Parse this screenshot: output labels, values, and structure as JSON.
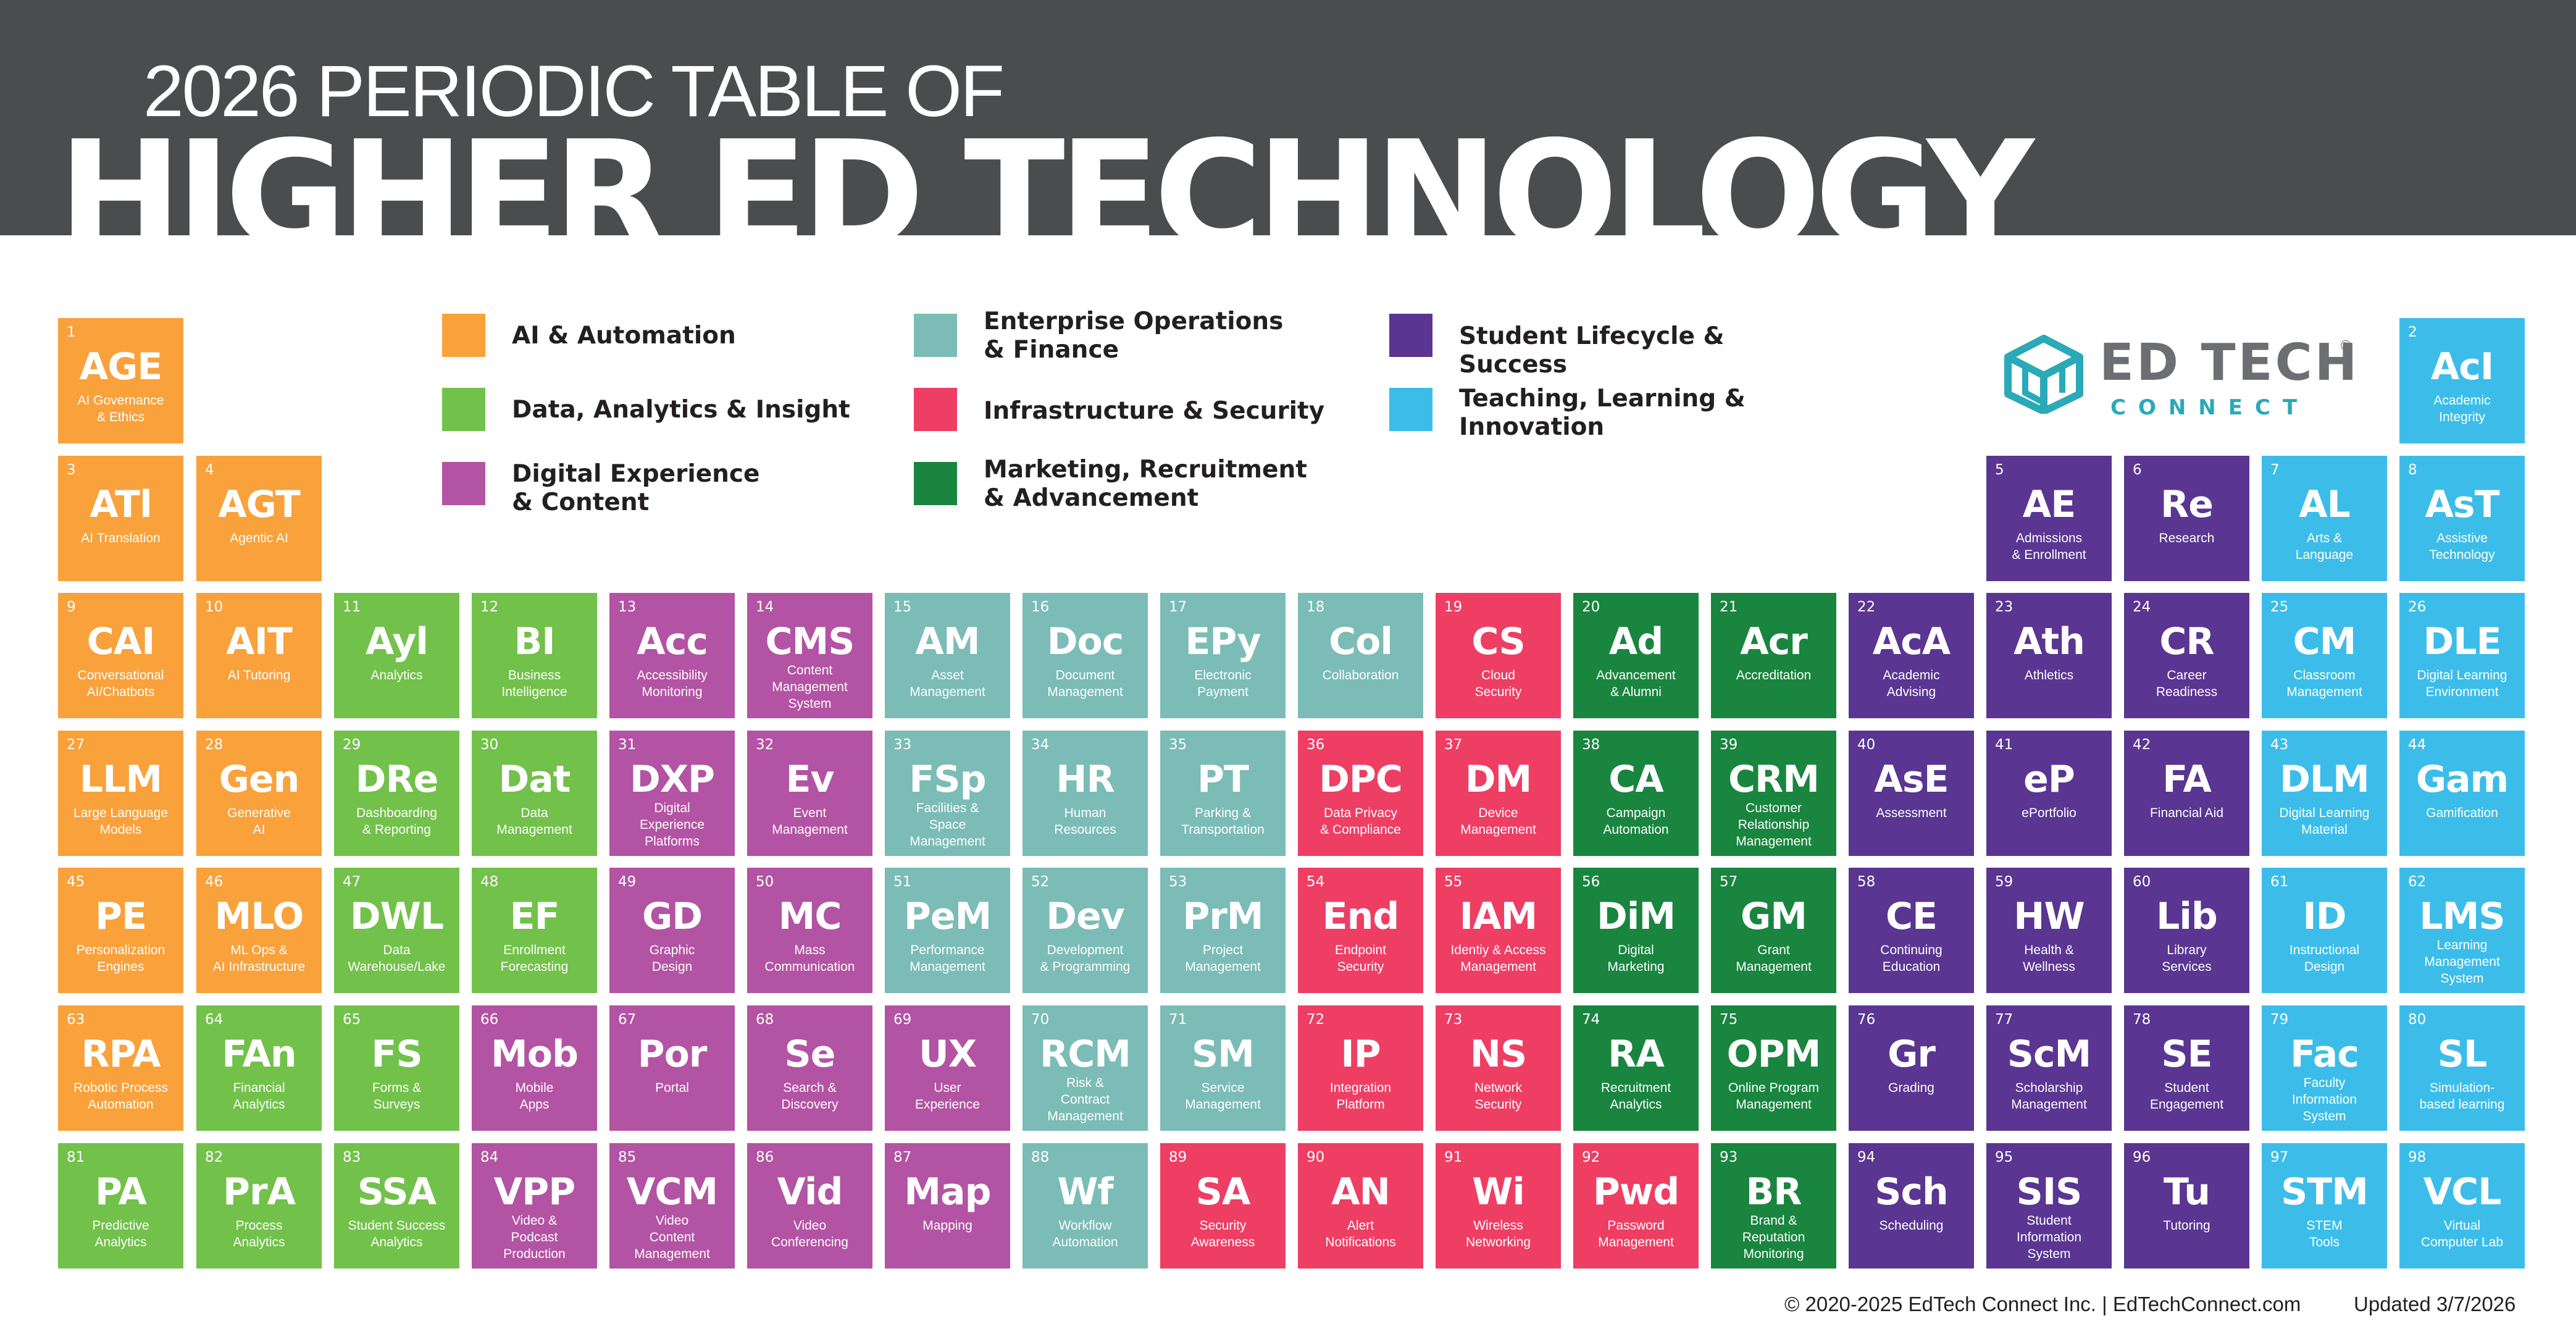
{
  "header": {
    "title_top": "2026  PERIODIC TABLE OF",
    "title_main": "HIGHER ED TECHNOLOGY"
  },
  "colors": {
    "header_bg": "#4b4c4e",
    "ai": "#f9a13b",
    "data": "#72c14a",
    "digital": "#b353a3",
    "enterprise": "#7bbcb6",
    "infra": "#ee3e64",
    "marketing": "#19853f",
    "student": "#5a3592",
    "teaching": "#3cbde9"
  },
  "legend": [
    {
      "key": "ai",
      "label": "AI & Automation"
    },
    {
      "key": "data",
      "label": "Data, Analytics & Insight"
    },
    {
      "key": "digital",
      "label": "Digital Experience\n& Content"
    },
    {
      "key": "enterprise",
      "label": "Enterprise Operations\n& Finance"
    },
    {
      "key": "infra",
      "label": "Infrastructure & Security"
    },
    {
      "key": "marketing",
      "label": "Marketing, Recruitment\n& Advancement"
    },
    {
      "key": "student",
      "label": "Student Lifecycle & Success"
    },
    {
      "key": "teaching",
      "label": "Teaching, Learning &\nInnovation"
    }
  ],
  "logo": {
    "word": "ED TECH",
    "sub": "CONNECT",
    "reg": "®",
    "icon": "cube-logo-icon"
  },
  "footer": {
    "copyright": "© 2020-2025 EdTech Connect Inc.  |  EdTechConnect.com",
    "updated": "Updated 3/7/2026"
  },
  "elements": [
    {
      "n": "1",
      "s": "AGE",
      "name": "AI Governance\n& Ethics",
      "c": "ai"
    },
    {
      "n": "2",
      "s": "AcI",
      "name": "Academic\nIntegrity",
      "c": "teaching"
    },
    {
      "n": "3",
      "s": "ATl",
      "name": "AI Translation",
      "c": "ai"
    },
    {
      "n": "4",
      "s": "AGT",
      "name": "Agentic AI",
      "c": "ai"
    },
    {
      "n": "5",
      "s": "AE",
      "name": "Admissions\n& Enrollment",
      "c": "student"
    },
    {
      "n": "6",
      "s": "Re",
      "name": "Research",
      "c": "student"
    },
    {
      "n": "7",
      "s": "AL",
      "name": "Arts &\nLanguage",
      "c": "teaching"
    },
    {
      "n": "8",
      "s": "AsT",
      "name": "Assistive\nTechnology",
      "c": "teaching"
    },
    {
      "n": "9",
      "s": "CAI",
      "name": "Conversational\nAI/Chatbots",
      "c": "ai"
    },
    {
      "n": "10",
      "s": "AIT",
      "name": "AI Tutoring",
      "c": "ai"
    },
    {
      "n": "11",
      "s": "Ayl",
      "name": "Analytics",
      "c": "data"
    },
    {
      "n": "12",
      "s": "BI",
      "name": "Business\nIntelligence",
      "c": "data"
    },
    {
      "n": "13",
      "s": "Acc",
      "name": "Accessibility\nMonitoring",
      "c": "digital"
    },
    {
      "n": "14",
      "s": "CMS",
      "name": "Content\nManagement\nSystem",
      "c": "digital"
    },
    {
      "n": "15",
      "s": "AM",
      "name": "Asset\nManagement",
      "c": "enterprise"
    },
    {
      "n": "16",
      "s": "Doc",
      "name": "Document\nManagement",
      "c": "enterprise"
    },
    {
      "n": "17",
      "s": "EPy",
      "name": "Electronic\nPayment",
      "c": "enterprise"
    },
    {
      "n": "18",
      "s": "Col",
      "name": "Collaboration",
      "c": "enterprise"
    },
    {
      "n": "19",
      "s": "CS",
      "name": "Cloud\nSecurity",
      "c": "infra"
    },
    {
      "n": "20",
      "s": "Ad",
      "name": "Advancement\n& Alumni",
      "c": "marketing"
    },
    {
      "n": "21",
      "s": "Acr",
      "name": "Accreditation",
      "c": "marketing"
    },
    {
      "n": "22",
      "s": "AcA",
      "name": "Academic\nAdvising",
      "c": "student"
    },
    {
      "n": "23",
      "s": "Ath",
      "name": "Athletics",
      "c": "student"
    },
    {
      "n": "24",
      "s": "CR",
      "name": "Career\nReadiness",
      "c": "student"
    },
    {
      "n": "25",
      "s": "CM",
      "name": "Classroom\nManagement",
      "c": "teaching"
    },
    {
      "n": "26",
      "s": "DLE",
      "name": "Digital Learning\nEnvironment",
      "c": "teaching"
    },
    {
      "n": "27",
      "s": "LLM",
      "name": "Large Language\nModels",
      "c": "ai"
    },
    {
      "n": "28",
      "s": "Gen",
      "name": "Generative\nAI",
      "c": "ai"
    },
    {
      "n": "29",
      "s": "DRe",
      "name": "Dashboarding\n& Reporting",
      "c": "data"
    },
    {
      "n": "30",
      "s": "Dat",
      "name": "Data\nManagement",
      "c": "data"
    },
    {
      "n": "31",
      "s": "DXP",
      "name": "Digital\nExperience\nPlatforms",
      "c": "digital"
    },
    {
      "n": "32",
      "s": "Ev",
      "name": "Event\nManagement",
      "c": "digital"
    },
    {
      "n": "33",
      "s": "FSp",
      "name": "Facilities &\nSpace\nManagement",
      "c": "enterprise"
    },
    {
      "n": "34",
      "s": "HR",
      "name": "Human\nResources",
      "c": "enterprise"
    },
    {
      "n": "35",
      "s": "PT",
      "name": "Parking &\nTransportation",
      "c": "enterprise"
    },
    {
      "n": "36",
      "s": "DPC",
      "name": "Data Privacy\n& Compliance",
      "c": "infra"
    },
    {
      "n": "37",
      "s": "DM",
      "name": "Device\nManagement",
      "c": "infra"
    },
    {
      "n": "38",
      "s": "CA",
      "name": "Campaign\nAutomation",
      "c": "marketing"
    },
    {
      "n": "39",
      "s": "CRM",
      "name": "Customer\nRelationship\nManagement",
      "c": "marketing"
    },
    {
      "n": "40",
      "s": "AsE",
      "name": "Assessment",
      "c": "student"
    },
    {
      "n": "41",
      "s": "eP",
      "name": "ePortfolio",
      "c": "student"
    },
    {
      "n": "42",
      "s": "FA",
      "name": "Financial Aid",
      "c": "student"
    },
    {
      "n": "43",
      "s": "DLM",
      "name": "Digital Learning\nMaterial",
      "c": "teaching"
    },
    {
      "n": "44",
      "s": "Gam",
      "name": "Gamification",
      "c": "teaching"
    },
    {
      "n": "45",
      "s": "PE",
      "name": "Personalization\nEngines",
      "c": "ai"
    },
    {
      "n": "46",
      "s": "MLO",
      "name": "ML Ops &\nAI Infrastructure",
      "c": "ai"
    },
    {
      "n": "47",
      "s": "DWL",
      "name": "Data\nWarehouse/Lake",
      "c": "data"
    },
    {
      "n": "48",
      "s": "EF",
      "name": "Enrollment\nForecasting",
      "c": "data"
    },
    {
      "n": "49",
      "s": "GD",
      "name": "Graphic\nDesign",
      "c": "digital"
    },
    {
      "n": "50",
      "s": "MC",
      "name": "Mass\nCommunication",
      "c": "digital"
    },
    {
      "n": "51",
      "s": "PeM",
      "name": "Performance\nManagement",
      "c": "enterprise"
    },
    {
      "n": "52",
      "s": "Dev",
      "name": "Development\n& Programming",
      "c": "enterprise"
    },
    {
      "n": "53",
      "s": "PrM",
      "name": "Project\nManagement",
      "c": "enterprise"
    },
    {
      "n": "54",
      "s": "End",
      "name": "Endpoint\nSecurity",
      "c": "infra"
    },
    {
      "n": "55",
      "s": "IAM",
      "name": "Identiy & Access\nManagement",
      "c": "infra"
    },
    {
      "n": "56",
      "s": "DiM",
      "name": "Digital\nMarketing",
      "c": "marketing"
    },
    {
      "n": "57",
      "s": "GM",
      "name": "Grant\nManagement",
      "c": "marketing"
    },
    {
      "n": "58",
      "s": "CE",
      "name": "Continuing\nEducation",
      "c": "student"
    },
    {
      "n": "59",
      "s": "HW",
      "name": "Health &\nWellness",
      "c": "student"
    },
    {
      "n": "60",
      "s": "Lib",
      "name": "Library\nServices",
      "c": "student"
    },
    {
      "n": "61",
      "s": "ID",
      "name": "Instructional\nDesign",
      "c": "teaching"
    },
    {
      "n": "62",
      "s": "LMS",
      "name": "Learning\nManagement\nSystem",
      "c": "teaching"
    },
    {
      "n": "63",
      "s": "RPA",
      "name": "Robotic Process\nAutomation",
      "c": "ai"
    },
    {
      "n": "64",
      "s": "FAn",
      "name": "Financial\nAnalytics",
      "c": "data"
    },
    {
      "n": "65",
      "s": "FS",
      "name": "Forms &\nSurveys",
      "c": "data"
    },
    {
      "n": "66",
      "s": "Mob",
      "name": "Mobile\nApps",
      "c": "digital"
    },
    {
      "n": "67",
      "s": "Por",
      "name": "Portal",
      "c": "digital"
    },
    {
      "n": "68",
      "s": "Se",
      "name": "Search &\nDiscovery",
      "c": "digital"
    },
    {
      "n": "69",
      "s": "UX",
      "name": "User\nExperience",
      "c": "digital"
    },
    {
      "n": "70",
      "s": "RCM",
      "name": "Risk &\nContract\nManagement",
      "c": "enterprise"
    },
    {
      "n": "71",
      "s": "SM",
      "name": "Service\nManagement",
      "c": "enterprise"
    },
    {
      "n": "72",
      "s": "IP",
      "name": "Integration\nPlatform",
      "c": "infra"
    },
    {
      "n": "73",
      "s": "NS",
      "name": "Network\nSecurity",
      "c": "infra"
    },
    {
      "n": "74",
      "s": "RA",
      "name": "Recruitment\nAnalytics",
      "c": "marketing"
    },
    {
      "n": "75",
      "s": "OPM",
      "name": "Online Program\nManagement",
      "c": "marketing"
    },
    {
      "n": "76",
      "s": "Gr",
      "name": "Grading",
      "c": "student"
    },
    {
      "n": "77",
      "s": "ScM",
      "name": "Scholarship\nManagement",
      "c": "student"
    },
    {
      "n": "78",
      "s": "SE",
      "name": "Student\nEngagement",
      "c": "student"
    },
    {
      "n": "79",
      "s": "Fac",
      "name": "Faculty\nInformation\nSystem",
      "c": "teaching"
    },
    {
      "n": "80",
      "s": "SL",
      "name": "Simulation-\nbased learning",
      "c": "teaching"
    },
    {
      "n": "81",
      "s": "PA",
      "name": "Predictive\nAnalytics",
      "c": "data"
    },
    {
      "n": "82",
      "s": "PrA",
      "name": "Process\nAnalytics",
      "c": "data"
    },
    {
      "n": "83",
      "s": "SSA",
      "name": "Student Success\nAnalytics",
      "c": "data"
    },
    {
      "n": "84",
      "s": "VPP",
      "name": "Video &\nPodcast\nProduction",
      "c": "digital"
    },
    {
      "n": "85",
      "s": "VCM",
      "name": "Video\nContent\nManagement",
      "c": "digital"
    },
    {
      "n": "86",
      "s": "Vid",
      "name": "Video\nConferencing",
      "c": "digital"
    },
    {
      "n": "87",
      "s": "Map",
      "name": "Mapping",
      "c": "digital"
    },
    {
      "n": "88",
      "s": "Wf",
      "name": "Workflow\nAutomation",
      "c": "enterprise"
    },
    {
      "n": "89",
      "s": "SA",
      "name": "Security\nAwareness",
      "c": "infra"
    },
    {
      "n": "90",
      "s": "AN",
      "name": "Alert\nNotifications",
      "c": "infra"
    },
    {
      "n": "91",
      "s": "Wi",
      "name": "Wireless\nNetworking",
      "c": "infra"
    },
    {
      "n": "92",
      "s": "Pwd",
      "name": "Password\nManagement",
      "c": "infra"
    },
    {
      "n": "93",
      "s": "BR",
      "name": "Brand &\nReputation\nMonitoring",
      "c": "marketing"
    },
    {
      "n": "94",
      "s": "Sch",
      "name": "Scheduling",
      "c": "student"
    },
    {
      "n": "95",
      "s": "SIS",
      "name": "Student\nInformation\nSystem",
      "c": "student"
    },
    {
      "n": "96",
      "s": "Tu",
      "name": "Tutoring",
      "c": "student"
    },
    {
      "n": "97",
      "s": "STM",
      "name": "STEM\nTools",
      "c": "teaching"
    },
    {
      "n": "98",
      "s": "VCL",
      "name": "Virtual\nComputer Lab",
      "c": "teaching"
    }
  ]
}
